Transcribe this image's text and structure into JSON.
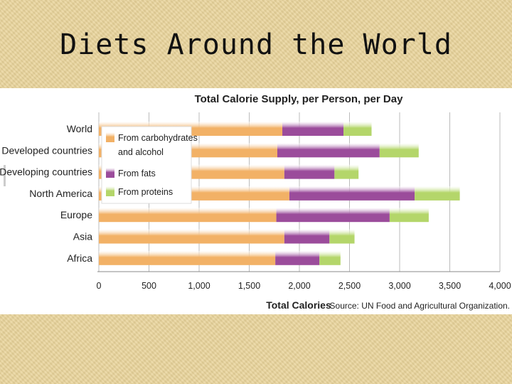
{
  "slide": {
    "title": "Diets Around the World"
  },
  "colors": {
    "carbs": "#f2b166",
    "fats": "#9b4c9b",
    "proteins": "#b4d66a",
    "grid": "#bbbbbb",
    "text": "#222222"
  },
  "chart_data": {
    "type": "bar",
    "orientation": "horizontal",
    "stacked": true,
    "title": "Total Calorie Supply, per Person, per Day",
    "xlabel": "Total Calories",
    "source": "Source: UN Food and Agricultural Organization.",
    "xlim": [
      0,
      4000
    ],
    "xticks": [
      0,
      500,
      1000,
      1500,
      2000,
      2500,
      3000,
      3500,
      4000
    ],
    "xtick_labels": [
      "0",
      "500",
      "1,000",
      "1,500",
      "2,000",
      "2,500",
      "3,000",
      "3,500",
      "4,000"
    ],
    "grid": true,
    "legend_position": "top-left",
    "categories": [
      "World",
      "Developed countries",
      "Developing countries",
      "North America",
      "Europe",
      "Asia",
      "Africa"
    ],
    "series": [
      {
        "name": "From carbohydrates and alcohol",
        "legend_lines": [
          "From carbohydrates",
          "and alcohol"
        ],
        "values": [
          1830,
          1780,
          1850,
          1900,
          1770,
          1850,
          1760
        ]
      },
      {
        "name": "From fats",
        "legend_lines": [
          "From fats"
        ],
        "values": [
          610,
          1020,
          500,
          1250,
          1130,
          450,
          440
        ]
      },
      {
        "name": "From proteins",
        "legend_lines": [
          "From proteins"
        ],
        "values": [
          280,
          390,
          240,
          450,
          390,
          250,
          210
        ]
      }
    ]
  }
}
